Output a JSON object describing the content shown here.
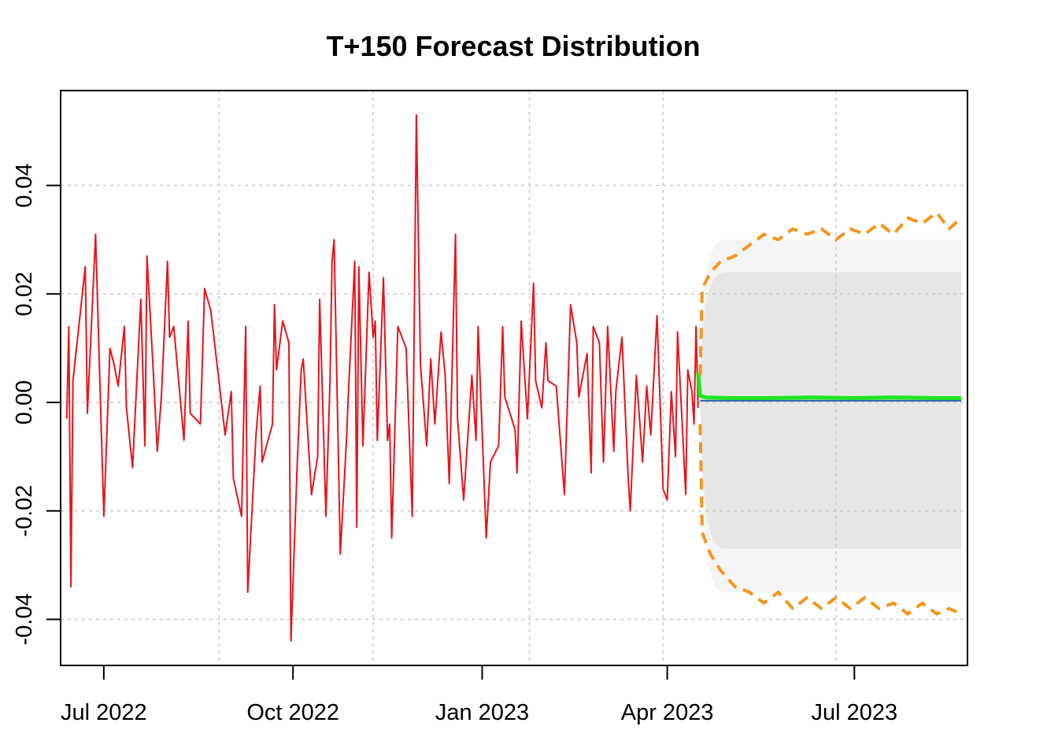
{
  "chart_data": {
    "type": "line",
    "title": "T+150 Forecast Distribution",
    "xlabel": "",
    "ylabel": "",
    "x_range": [
      "2022-06-10",
      "2023-08-25"
    ],
    "ylim": [
      -0.0485,
      0.0575
    ],
    "grid": true,
    "legend": "none",
    "x_ticks": [
      {
        "date": "2022-07-01",
        "label": "Jul 2022"
      },
      {
        "date": "2022-10-01",
        "label": "Oct 2022"
      },
      {
        "date": "2023-01-01",
        "label": "Jan 2023"
      },
      {
        "date": "2023-04-01",
        "label": "Apr 2023"
      },
      {
        "date": "2023-07-01",
        "label": "Jul 2023"
      }
    ],
    "x_grid_dates": [
      "2022-06-10",
      "2022-08-26",
      "2022-11-09",
      "2023-01-24",
      "2023-03-30",
      "2023-06-22",
      "2023-08-25"
    ],
    "y_ticks": [
      {
        "value": 0.04,
        "label": "0.04"
      },
      {
        "value": 0.02,
        "label": "0.02"
      },
      {
        "value": 0.0,
        "label": "0.00"
      },
      {
        "value": -0.02,
        "label": "-0.02"
      },
      {
        "value": -0.04,
        "label": "-0.04"
      }
    ],
    "series": [
      {
        "role": "history",
        "color": "#e8141b",
        "points": [
          [
            "2022-06-13",
            -0.003
          ],
          [
            "2022-06-14",
            0.014
          ],
          [
            "2022-06-15",
            -0.034
          ],
          [
            "2022-06-16",
            0.004
          ],
          [
            "2022-06-20",
            0.018
          ],
          [
            "2022-06-22",
            0.025
          ],
          [
            "2022-06-23",
            -0.002
          ],
          [
            "2022-06-27",
            0.031
          ],
          [
            "2022-06-28",
            0.018
          ],
          [
            "2022-07-01",
            -0.021
          ],
          [
            "2022-07-04",
            0.01
          ],
          [
            "2022-07-06",
            0.007
          ],
          [
            "2022-07-08",
            0.003
          ],
          [
            "2022-07-11",
            0.014
          ],
          [
            "2022-07-12",
            -0.001
          ],
          [
            "2022-07-15",
            -0.012
          ],
          [
            "2022-07-19",
            0.019
          ],
          [
            "2022-07-21",
            -0.008
          ],
          [
            "2022-07-22",
            0.027
          ],
          [
            "2022-07-25",
            0.006
          ],
          [
            "2022-07-27",
            -0.009
          ],
          [
            "2022-07-29",
            0.001
          ],
          [
            "2022-08-01",
            0.026
          ],
          [
            "2022-08-02",
            0.012
          ],
          [
            "2022-08-04",
            0.014
          ],
          [
            "2022-08-09",
            -0.007
          ],
          [
            "2022-08-11",
            0.015
          ],
          [
            "2022-08-12",
            -0.002
          ],
          [
            "2022-08-17",
            -0.004
          ],
          [
            "2022-08-19",
            0.021
          ],
          [
            "2022-08-22",
            0.017
          ],
          [
            "2022-08-26",
            0.004
          ],
          [
            "2022-08-29",
            -0.006
          ],
          [
            "2022-09-01",
            0.002
          ],
          [
            "2022-09-02",
            -0.014
          ],
          [
            "2022-09-06",
            -0.021
          ],
          [
            "2022-09-08",
            0.014
          ],
          [
            "2022-09-09",
            -0.035
          ],
          [
            "2022-09-13",
            -0.006
          ],
          [
            "2022-09-15",
            0.003
          ],
          [
            "2022-09-16",
            -0.011
          ],
          [
            "2022-09-21",
            -0.004
          ],
          [
            "2022-09-22",
            0.018
          ],
          [
            "2022-09-23",
            0.006
          ],
          [
            "2022-09-26",
            0.015
          ],
          [
            "2022-09-29",
            0.011
          ],
          [
            "2022-09-30",
            -0.044
          ],
          [
            "2022-10-03",
            -0.012
          ],
          [
            "2022-10-05",
            0.006
          ],
          [
            "2022-10-06",
            0.008
          ],
          [
            "2022-10-10",
            -0.017
          ],
          [
            "2022-10-13",
            -0.01
          ],
          [
            "2022-10-14",
            0.019
          ],
          [
            "2022-10-17",
            -0.021
          ],
          [
            "2022-10-19",
            0.004
          ],
          [
            "2022-10-20",
            0.026
          ],
          [
            "2022-10-21",
            0.03
          ],
          [
            "2022-10-24",
            -0.028
          ],
          [
            "2022-10-27",
            -0.007
          ],
          [
            "2022-10-28",
            0.002
          ],
          [
            "2022-10-31",
            0.026
          ],
          [
            "2022-11-01",
            -0.023
          ],
          [
            "2022-11-02",
            0.025
          ],
          [
            "2022-11-04",
            -0.008
          ],
          [
            "2022-11-07",
            0.024
          ],
          [
            "2022-11-09",
            0.012
          ],
          [
            "2022-11-10",
            0.015
          ],
          [
            "2022-11-11",
            -0.007
          ],
          [
            "2022-11-14",
            0.023
          ],
          [
            "2022-11-16",
            -0.007
          ],
          [
            "2022-11-17",
            -0.004
          ],
          [
            "2022-11-18",
            -0.025
          ],
          [
            "2022-11-21",
            0.014
          ],
          [
            "2022-11-25",
            0.01
          ],
          [
            "2022-11-28",
            -0.021
          ],
          [
            "2022-11-30",
            0.053
          ],
          [
            "2022-12-02",
            0.007
          ],
          [
            "2022-12-05",
            -0.008
          ],
          [
            "2022-12-07",
            0.008
          ],
          [
            "2022-12-09",
            -0.004
          ],
          [
            "2022-12-12",
            0.013
          ],
          [
            "2022-12-14",
            0.005
          ],
          [
            "2022-12-16",
            -0.015
          ],
          [
            "2022-12-19",
            0.031
          ],
          [
            "2022-12-20",
            -0.003
          ],
          [
            "2022-12-23",
            -0.018
          ],
          [
            "2022-12-27",
            0.005
          ],
          [
            "2022-12-29",
            -0.007
          ],
          [
            "2022-12-30",
            0.014
          ],
          [
            "2023-01-03",
            -0.025
          ],
          [
            "2023-01-05",
            -0.011
          ],
          [
            "2023-01-09",
            -0.008
          ],
          [
            "2023-01-11",
            0.014
          ],
          [
            "2023-01-12",
            0.001
          ],
          [
            "2023-01-17",
            -0.005
          ],
          [
            "2023-01-18",
            -0.013
          ],
          [
            "2023-01-20",
            0.015
          ],
          [
            "2023-01-23",
            -0.003
          ],
          [
            "2023-01-26",
            0.022
          ],
          [
            "2023-01-27",
            0.004
          ],
          [
            "2023-01-30",
            -0.001
          ],
          [
            "2023-02-01",
            0.011
          ],
          [
            "2023-02-02",
            0.004
          ],
          [
            "2023-02-06",
            0.003
          ],
          [
            "2023-02-10",
            -0.017
          ],
          [
            "2023-02-13",
            0.018
          ],
          [
            "2023-02-16",
            0.011
          ],
          [
            "2023-02-17",
            0.001
          ],
          [
            "2023-02-21",
            0.009
          ],
          [
            "2023-02-23",
            -0.013
          ],
          [
            "2023-02-24",
            0.014
          ],
          [
            "2023-02-27",
            0.011
          ],
          [
            "2023-03-01",
            -0.011
          ],
          [
            "2023-03-03",
            0.014
          ],
          [
            "2023-03-06",
            -0.009
          ],
          [
            "2023-03-07",
            0.002
          ],
          [
            "2023-03-10",
            0.012
          ],
          [
            "2023-03-13",
            -0.014
          ],
          [
            "2023-03-14",
            -0.02
          ],
          [
            "2023-03-17",
            0.005
          ],
          [
            "2023-03-20",
            -0.011
          ],
          [
            "2023-03-22",
            0.003
          ],
          [
            "2023-03-24",
            -0.006
          ],
          [
            "2023-03-27",
            0.016
          ],
          [
            "2023-03-30",
            -0.016
          ],
          [
            "2023-04-01",
            -0.018
          ],
          [
            "2023-04-03",
            0.002
          ],
          [
            "2023-04-05",
            -0.01
          ],
          [
            "2023-04-06",
            0.013
          ],
          [
            "2023-04-10",
            -0.017
          ],
          [
            "2023-04-11",
            0.006
          ],
          [
            "2023-04-13",
            0.002
          ],
          [
            "2023-04-14",
            -0.004
          ],
          [
            "2023-04-15",
            0.014
          ],
          [
            "2023-04-16",
            -0.001
          ]
        ]
      },
      {
        "role": "forecast-mean",
        "color": "#1ee81e",
        "points": [
          [
            "2023-04-16",
            0.0055
          ],
          [
            "2023-04-17",
            0.0012
          ],
          [
            "2023-04-20",
            0.0009
          ],
          [
            "2023-05-01",
            0.0008
          ],
          [
            "2023-05-20",
            0.0008
          ],
          [
            "2023-06-10",
            0.0009
          ],
          [
            "2023-07-01",
            0.0008
          ],
          [
            "2023-07-20",
            0.0009
          ],
          [
            "2023-08-10",
            0.0008
          ],
          [
            "2023-08-22",
            0.0008
          ]
        ]
      },
      {
        "role": "forecast-median",
        "color": "#2a5fb0",
        "points": [
          [
            "2023-04-17",
            0.0003
          ],
          [
            "2023-08-22",
            0.0003
          ]
        ]
      },
      {
        "role": "forecast-upper-bound",
        "color": "#f5951e",
        "points": [
          [
            "2023-04-17",
            0.005
          ],
          [
            "2023-04-18",
            0.021
          ],
          [
            "2023-04-22",
            0.024
          ],
          [
            "2023-04-27",
            0.026
          ],
          [
            "2023-05-04",
            0.027
          ],
          [
            "2023-05-11",
            0.029
          ],
          [
            "2023-05-18",
            0.031
          ],
          [
            "2023-05-25",
            0.03
          ],
          [
            "2023-06-01",
            0.032
          ],
          [
            "2023-06-08",
            0.031
          ],
          [
            "2023-06-15",
            0.032
          ],
          [
            "2023-06-22",
            0.03
          ],
          [
            "2023-06-29",
            0.032
          ],
          [
            "2023-07-06",
            0.031
          ],
          [
            "2023-07-13",
            0.033
          ],
          [
            "2023-07-20",
            0.031
          ],
          [
            "2023-07-27",
            0.034
          ],
          [
            "2023-08-03",
            0.033
          ],
          [
            "2023-08-10",
            0.035
          ],
          [
            "2023-08-16",
            0.032
          ],
          [
            "2023-08-22",
            0.034
          ]
        ]
      },
      {
        "role": "forecast-lower-bound",
        "color": "#f5951e",
        "points": [
          [
            "2023-04-17",
            -0.004
          ],
          [
            "2023-04-18",
            -0.024
          ],
          [
            "2023-04-22",
            -0.028
          ],
          [
            "2023-04-27",
            -0.031
          ],
          [
            "2023-05-04",
            -0.034
          ],
          [
            "2023-05-11",
            -0.035
          ],
          [
            "2023-05-18",
            -0.037
          ],
          [
            "2023-05-25",
            -0.035
          ],
          [
            "2023-06-01",
            -0.038
          ],
          [
            "2023-06-08",
            -0.036
          ],
          [
            "2023-06-15",
            -0.038
          ],
          [
            "2023-06-22",
            -0.036
          ],
          [
            "2023-06-29",
            -0.038
          ],
          [
            "2023-07-06",
            -0.036
          ],
          [
            "2023-07-13",
            -0.038
          ],
          [
            "2023-07-20",
            -0.037
          ],
          [
            "2023-07-27",
            -0.039
          ],
          [
            "2023-08-03",
            -0.037
          ],
          [
            "2023-08-10",
            -0.039
          ],
          [
            "2023-08-16",
            -0.038
          ],
          [
            "2023-08-22",
            -0.039
          ]
        ]
      }
    ],
    "bands": [
      {
        "role": "outer-band",
        "color": "#f4f4f4",
        "start": "2023-04-17",
        "end": "2023-08-22",
        "upper": 0.03,
        "lower": -0.035
      },
      {
        "role": "inner-band",
        "color": "#e6e6e6",
        "start": "2023-04-17",
        "end": "2023-08-22",
        "upper": 0.024,
        "lower": -0.027
      }
    ]
  }
}
